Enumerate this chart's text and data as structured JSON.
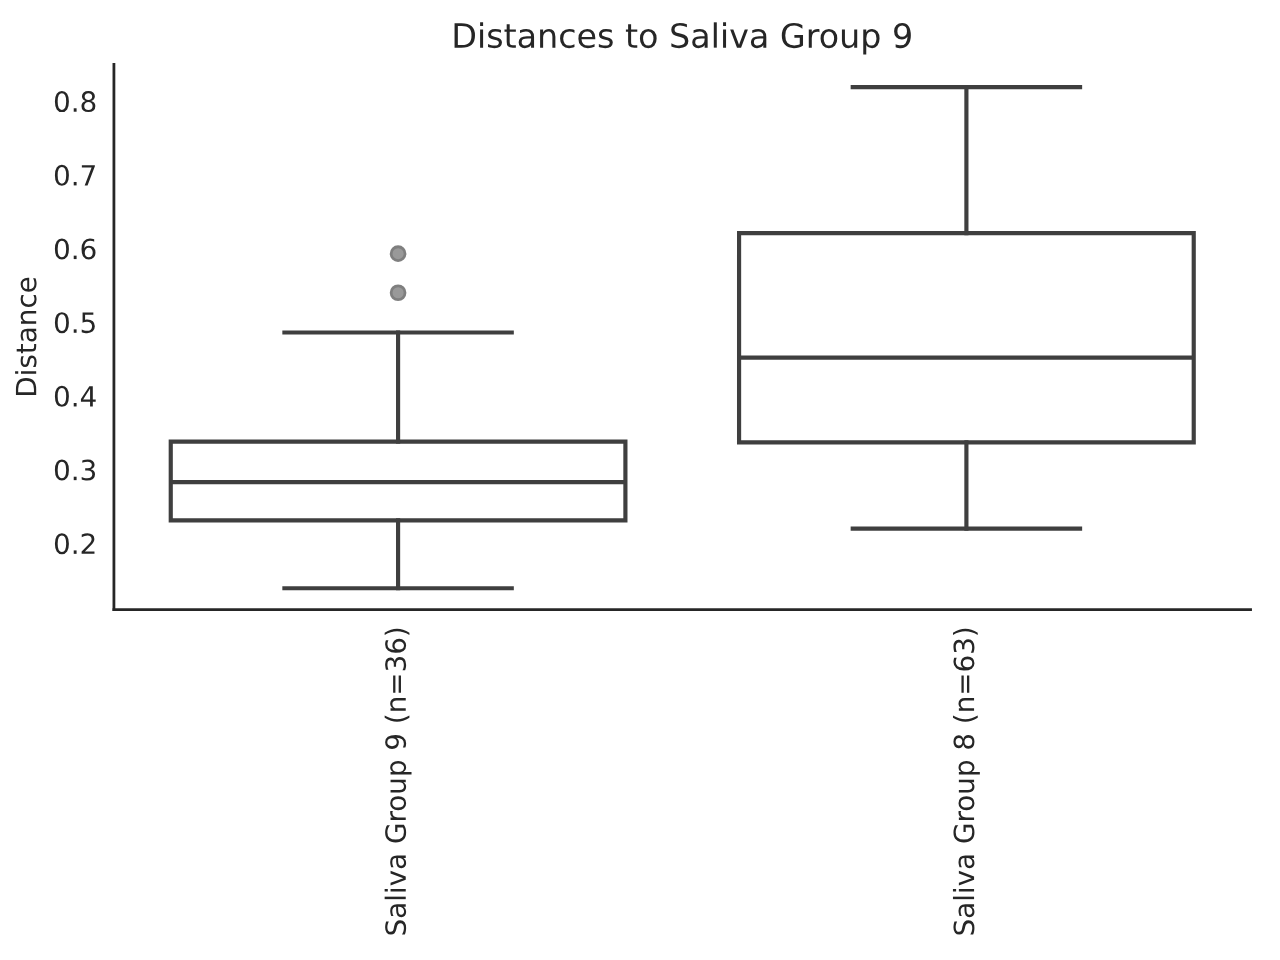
{
  "chart_data": {
    "type": "box",
    "title": "Distances to Saliva Group 9",
    "ylabel": "Distance",
    "categories": [
      "Saliva Group 9 (n=36)",
      "Saliva Group 8 (n=63)"
    ],
    "boxes": [
      {
        "low": 0.139,
        "q1": 0.231,
        "median": 0.283,
        "q3": 0.338,
        "high": 0.486,
        "outliers": [
          0.54,
          0.593
        ]
      },
      {
        "low": 0.22,
        "q1": 0.337,
        "median": 0.452,
        "q3": 0.621,
        "high": 0.819
      }
    ],
    "ylim": [
      0.11,
      0.85
    ],
    "yticks": [
      0.2,
      0.3,
      0.4,
      0.5,
      0.6,
      0.7,
      0.8
    ]
  }
}
